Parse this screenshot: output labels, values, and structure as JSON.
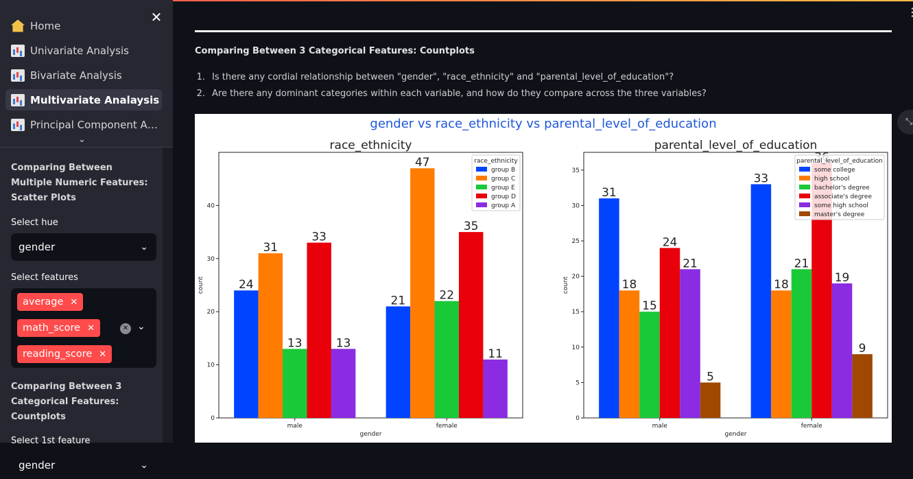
{
  "sidebar": {
    "close_icon": "close-icon",
    "nav": [
      {
        "label": "Home",
        "icon": "house-icon"
      },
      {
        "label": "Univariate Analysis",
        "icon": "bar-chart-icon"
      },
      {
        "label": "Bivariate Analysis",
        "icon": "bar-chart-icon"
      },
      {
        "label": "Multivariate Analaysis",
        "icon": "bar-chart-icon",
        "active": true
      },
      {
        "label": "Principal Component Analysis",
        "icon": "bar-chart-icon"
      }
    ],
    "section1": "Comparing Between Multiple Numeric Features: Scatter Plots",
    "hue_label": "Select hue",
    "hue_value": "gender",
    "features_label": "Select features",
    "features": [
      "average",
      "math_score",
      "reading_score"
    ],
    "section2": "Comparing Between 3 Categorical Features: Countplots",
    "first_feature_label": "Select 1st feature",
    "first_feature_value": "gender"
  },
  "main": {
    "heading": "Comparing Between 3 Categorical Features: Countplots",
    "questions": [
      {
        "num": "1.",
        "text": "Is there any cordial relationship between \"gender\", \"race_ethnicity\" and \"parental_level_of_education\"?"
      },
      {
        "num": "2.",
        "text": "Are there any dominant categories within each variable, and how do they compare across the three variables?"
      }
    ]
  },
  "colors": {
    "accent": "#ff4b4b",
    "series": [
      "#0044ff",
      "#ff7c00",
      "#1ac938",
      "#e8000b",
      "#8b2be2",
      "#9f4800"
    ]
  },
  "chart_data": [
    {
      "type": "bar",
      "suptitle": "gender vs race_ethnicity vs parental_level_of_education",
      "title": "race_ethnicity",
      "xlabel": "gender",
      "ylabel": "count",
      "categories": [
        "male",
        "female"
      ],
      "ylim": [
        0,
        50
      ],
      "yticks": [
        0,
        10,
        20,
        30,
        40
      ],
      "legend_title": "race_ethnicity",
      "legend_position": "top-right",
      "series": [
        {
          "name": "group B",
          "values": [
            24,
            21
          ]
        },
        {
          "name": "group C",
          "values": [
            31,
            47
          ]
        },
        {
          "name": "group E",
          "values": [
            13,
            22
          ]
        },
        {
          "name": "group D",
          "values": [
            33,
            35
          ]
        },
        {
          "name": "group A",
          "values": [
            13,
            11
          ]
        }
      ]
    },
    {
      "type": "bar",
      "title": "parental_level_of_education",
      "xlabel": "gender",
      "ylabel": "count",
      "categories": [
        "male",
        "female"
      ],
      "ylim": [
        0,
        37.5
      ],
      "yticks": [
        0,
        5,
        10,
        15,
        20,
        25,
        30,
        35
      ],
      "legend_title": "parental_level_of_education",
      "legend_position": "top-right",
      "series": [
        {
          "name": "some college",
          "values": [
            31,
            33
          ]
        },
        {
          "name": "high school",
          "values": [
            18,
            18
          ]
        },
        {
          "name": "bachelor's degree",
          "values": [
            15,
            21
          ]
        },
        {
          "name": "associate's degree",
          "values": [
            24,
            36
          ]
        },
        {
          "name": "some high school",
          "values": [
            21,
            19
          ]
        },
        {
          "name": "master's degree",
          "values": [
            5,
            9
          ]
        }
      ]
    }
  ]
}
